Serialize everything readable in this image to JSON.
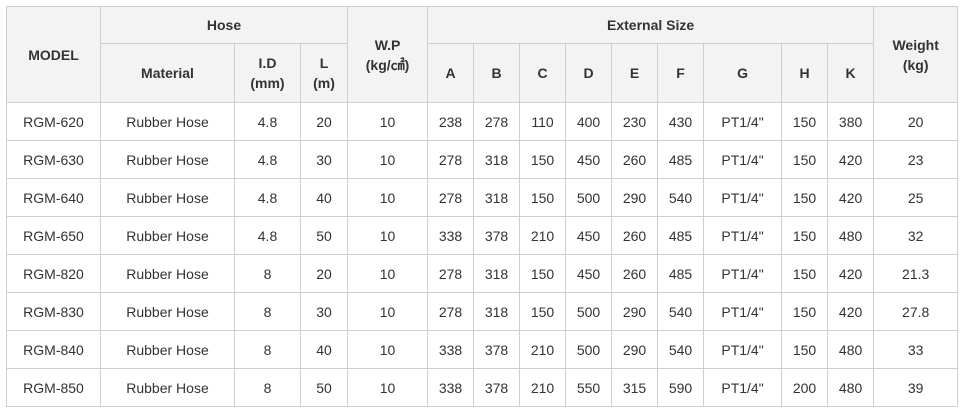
{
  "table": {
    "headers": {
      "model": "MODEL",
      "hose": "Hose",
      "material": "Material",
      "id_label": "I.D",
      "id_unit": "(mm)",
      "l_label": "L",
      "l_unit": "(m)",
      "wp_label": "W.P",
      "wp_unit": "(kg/㎠)",
      "external_size": "External Size",
      "ext_cols": [
        "A",
        "B",
        "C",
        "D",
        "E",
        "F",
        "G",
        "H",
        "K"
      ],
      "weight_label": "Weight",
      "weight_unit": "(kg)"
    },
    "rows": [
      {
        "model": "RGM-620",
        "material": "Rubber Hose",
        "id": "4.8",
        "l": "20",
        "wp": "10",
        "a": "238",
        "b": "278",
        "c": "110",
        "d": "400",
        "e": "230",
        "f": "430",
        "g": "PT1/4\"",
        "h": "150",
        "k": "380",
        "weight": "20"
      },
      {
        "model": "RGM-630",
        "material": "Rubber Hose",
        "id": "4.8",
        "l": "30",
        "wp": "10",
        "a": "278",
        "b": "318",
        "c": "150",
        "d": "450",
        "e": "260",
        "f": "485",
        "g": "PT1/4\"",
        "h": "150",
        "k": "420",
        "weight": "23"
      },
      {
        "model": "RGM-640",
        "material": "Rubber Hose",
        "id": "4.8",
        "l": "40",
        "wp": "10",
        "a": "278",
        "b": "318",
        "c": "150",
        "d": "500",
        "e": "290",
        "f": "540",
        "g": "PT1/4\"",
        "h": "150",
        "k": "420",
        "weight": "25"
      },
      {
        "model": "RGM-650",
        "material": "Rubber Hose",
        "id": "4.8",
        "l": "50",
        "wp": "10",
        "a": "338",
        "b": "378",
        "c": "210",
        "d": "450",
        "e": "260",
        "f": "485",
        "g": "PT1/4\"",
        "h": "150",
        "k": "480",
        "weight": "32"
      },
      {
        "model": "RGM-820",
        "material": "Rubber Hose",
        "id": "8",
        "l": "20",
        "wp": "10",
        "a": "278",
        "b": "318",
        "c": "150",
        "d": "450",
        "e": "260",
        "f": "485",
        "g": "PT1/4\"",
        "h": "150",
        "k": "420",
        "weight": "21.3"
      },
      {
        "model": "RGM-830",
        "material": "Rubber Hose",
        "id": "8",
        "l": "30",
        "wp": "10",
        "a": "278",
        "b": "318",
        "c": "150",
        "d": "500",
        "e": "290",
        "f": "540",
        "g": "PT1/4\"",
        "h": "150",
        "k": "420",
        "weight": "27.8"
      },
      {
        "model": "RGM-840",
        "material": "Rubber Hose",
        "id": "8",
        "l": "40",
        "wp": "10",
        "a": "338",
        "b": "378",
        "c": "210",
        "d": "500",
        "e": "290",
        "f": "540",
        "g": "PT1/4\"",
        "h": "150",
        "k": "480",
        "weight": "33"
      },
      {
        "model": "RGM-850",
        "material": "Rubber Hose",
        "id": "8",
        "l": "50",
        "wp": "10",
        "a": "338",
        "b": "378",
        "c": "210",
        "d": "550",
        "e": "315",
        "f": "590",
        "g": "PT1/4\"",
        "h": "200",
        "k": "480",
        "weight": "39"
      }
    ]
  }
}
